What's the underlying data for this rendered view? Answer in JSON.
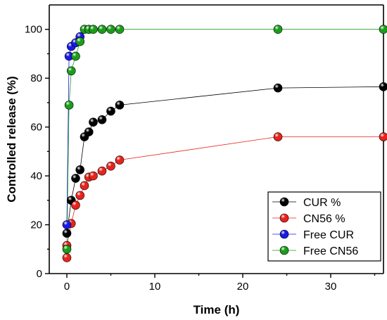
{
  "chart_data": {
    "type": "scatter",
    "xlabel": "Time (h)",
    "ylabel": "Controlled release (%)",
    "xlim": [
      -2,
      36
    ],
    "ylim": [
      0,
      110
    ],
    "xticks": [
      0,
      10,
      20,
      30
    ],
    "yticks": [
      0,
      20,
      40,
      60,
      80,
      100
    ],
    "legend_position": "bottom-right",
    "series": [
      {
        "name": "CUR %",
        "color": "#000000",
        "points": [
          [
            0,
            16.5
          ],
          [
            0.5,
            30
          ],
          [
            1,
            39
          ],
          [
            1.5,
            42.5
          ],
          [
            2,
            56
          ],
          [
            2.5,
            58
          ],
          [
            3,
            62
          ],
          [
            4,
            63
          ],
          [
            5,
            66.5
          ],
          [
            6,
            69
          ],
          [
            24,
            76
          ],
          [
            36,
            76.5
          ]
        ]
      },
      {
        "name": "CN56 %",
        "color": "#e8231c",
        "points": [
          [
            0,
            6.5
          ],
          [
            0,
            11.5
          ],
          [
            0.5,
            20.5
          ],
          [
            1,
            28
          ],
          [
            1.5,
            32
          ],
          [
            2,
            36
          ],
          [
            2.5,
            39.5
          ],
          [
            3,
            40
          ],
          [
            4,
            42
          ],
          [
            5,
            44
          ],
          [
            6,
            46.5
          ],
          [
            24,
            56
          ],
          [
            36,
            56
          ]
        ]
      },
      {
        "name": "Free CUR",
        "color": "#1a1ae6",
        "points": [
          [
            0,
            20
          ],
          [
            0.25,
            89
          ],
          [
            0.5,
            93
          ],
          [
            1,
            94.5
          ],
          [
            1.5,
            97
          ]
        ]
      },
      {
        "name": "Free CN56",
        "color": "#1a9e1a",
        "points": [
          [
            0,
            10
          ],
          [
            0.25,
            69
          ],
          [
            0.5,
            83
          ],
          [
            1,
            89
          ],
          [
            1.5,
            95
          ],
          [
            2,
            100
          ],
          [
            2.5,
            100
          ],
          [
            3,
            100
          ],
          [
            4,
            100
          ],
          [
            5,
            100
          ],
          [
            6,
            100
          ],
          [
            24,
            100
          ],
          [
            36,
            100
          ]
        ]
      }
    ]
  }
}
